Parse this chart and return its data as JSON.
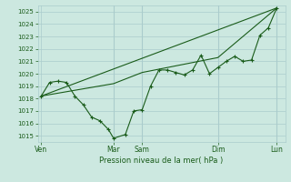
{
  "bg_color": "#cce8e0",
  "grid_color": "#aacccc",
  "line_color": "#1a5c1a",
  "xlabel": "Pression niveau de la mer( hPa )",
  "ylim": [
    1014.5,
    1025.5
  ],
  "yticks": [
    1015,
    1016,
    1017,
    1018,
    1019,
    1020,
    1021,
    1022,
    1023,
    1024,
    1025
  ],
  "xtick_labels": [
    "Ven",
    "Mar",
    "Sam",
    "Dim",
    "Lun"
  ],
  "xtick_positions": [
    0,
    4.3,
    6.0,
    10.5,
    14.0
  ],
  "vlines": [
    4.3,
    6.0,
    10.5,
    14.0
  ],
  "line1_x": [
    0,
    0.5,
    1.0,
    1.5,
    2.0,
    2.5,
    3.0,
    3.5,
    4.0,
    4.3,
    5.0,
    5.5,
    6.0,
    6.5,
    7.0,
    7.5,
    8.0,
    8.5,
    9.0,
    9.5,
    10.0,
    10.5,
    11.0,
    11.5,
    12.0,
    12.5,
    13.0,
    13.5,
    14.0
  ],
  "line1_y": [
    1018.2,
    1019.3,
    1019.4,
    1019.3,
    1018.2,
    1017.5,
    1016.5,
    1016.2,
    1015.5,
    1014.8,
    1015.1,
    1017.0,
    1017.1,
    1019.0,
    1020.3,
    1020.3,
    1020.1,
    1019.9,
    1020.3,
    1021.5,
    1020.0,
    1020.5,
    1021.0,
    1021.4,
    1021.0,
    1021.1,
    1023.1,
    1023.7,
    1025.3
  ],
  "line2_x": [
    0,
    4.3,
    6.0,
    10.5,
    14.0
  ],
  "line2_y": [
    1018.2,
    1019.2,
    1020.1,
    1021.3,
    1025.3
  ],
  "line3_x": [
    0,
    14.0
  ],
  "line3_y": [
    1018.2,
    1025.3
  ]
}
